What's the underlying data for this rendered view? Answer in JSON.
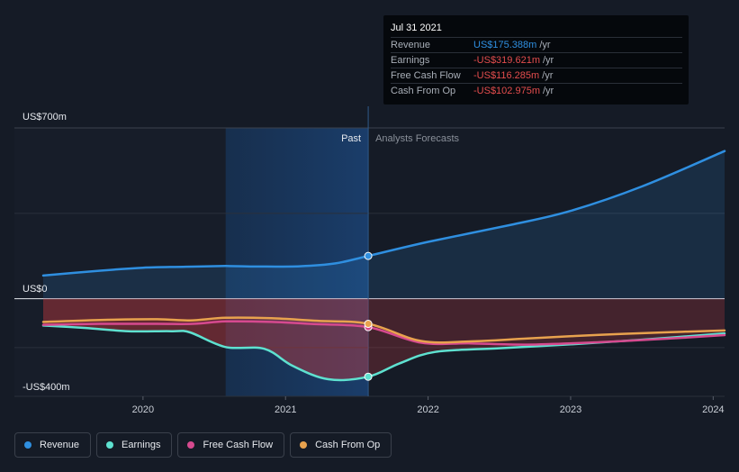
{
  "tooltip": {
    "date": "Jul 31 2021",
    "rows": [
      {
        "label": "Revenue",
        "value": "US$175.388m",
        "unit": "/yr",
        "color": "#2f8fe0"
      },
      {
        "label": "Earnings",
        "value": "-US$319.621m",
        "unit": "/yr",
        "color": "#e44d4d"
      },
      {
        "label": "Free Cash Flow",
        "value": "-US$116.285m",
        "unit": "/yr",
        "color": "#e44d4d"
      },
      {
        "label": "Cash From Op",
        "value": "-US$102.975m",
        "unit": "/yr",
        "color": "#e44d4d"
      }
    ]
  },
  "legend": [
    {
      "label": "Revenue",
      "color": "#2f8fe0"
    },
    {
      "label": "Earnings",
      "color": "#5ee1d0"
    },
    {
      "label": "Free Cash Flow",
      "color": "#d64a8f"
    },
    {
      "label": "Cash From Op",
      "color": "#e8a24e"
    }
  ],
  "chart_data": {
    "type": "line",
    "y_tick_labels": [
      "US$700m",
      "US$0",
      "-US$400m"
    ],
    "x_tick_labels": [
      "2020",
      "2021",
      "2022",
      "2023",
      "2024"
    ],
    "region_labels": {
      "past": "Past",
      "forecast": "Analysts Forecasts"
    },
    "ylim": [
      -400,
      700
    ],
    "xlim": [
      2019.1,
      2024.08
    ],
    "divider_x": 2021.58,
    "highlight_start": 2020.58,
    "series": [
      {
        "name": "Revenue",
        "color": "#2f8fe0",
        "points": [
          [
            2019.3,
            95
          ],
          [
            2019.7,
            115
          ],
          [
            2020.0,
            127
          ],
          [
            2020.3,
            131
          ],
          [
            2020.58,
            134
          ],
          [
            2020.8,
            132
          ],
          [
            2021.1,
            133
          ],
          [
            2021.35,
            145
          ],
          [
            2021.58,
            175.388
          ],
          [
            2022.0,
            233
          ],
          [
            2022.6,
            305
          ],
          [
            2023.0,
            360
          ],
          [
            2023.5,
            460
          ],
          [
            2024.08,
            605
          ]
        ],
        "markers": [
          [
            2021.58,
            175.388
          ]
        ]
      },
      {
        "name": "Earnings",
        "color": "#5ee1d0",
        "points": [
          [
            2019.3,
            -110
          ],
          [
            2019.6,
            -120
          ],
          [
            2019.9,
            -133
          ],
          [
            2020.2,
            -133
          ],
          [
            2020.33,
            -138
          ],
          [
            2020.58,
            -198
          ],
          [
            2020.85,
            -205
          ],
          [
            2021.05,
            -275
          ],
          [
            2021.3,
            -330
          ],
          [
            2021.58,
            -319.621
          ],
          [
            2021.8,
            -265
          ],
          [
            2022.05,
            -218
          ],
          [
            2022.5,
            -203
          ],
          [
            2023.0,
            -187
          ],
          [
            2023.5,
            -168
          ],
          [
            2024.08,
            -142
          ]
        ],
        "markers": [
          [
            2021.58,
            -319.621
          ]
        ]
      },
      {
        "name": "Free Cash Flow",
        "color": "#d64a8f",
        "points": [
          [
            2019.3,
            -107
          ],
          [
            2019.7,
            -103
          ],
          [
            2020.1,
            -103
          ],
          [
            2020.35,
            -103
          ],
          [
            2020.58,
            -93
          ],
          [
            2020.9,
            -95
          ],
          [
            2021.2,
            -104
          ],
          [
            2021.58,
            -116.285
          ],
          [
            2021.95,
            -180
          ],
          [
            2022.3,
            -183
          ],
          [
            2022.7,
            -188
          ],
          [
            2023.2,
            -178
          ],
          [
            2023.7,
            -163
          ],
          [
            2024.08,
            -149
          ]
        ],
        "markers": [
          [
            2021.58,
            -116.285
          ]
        ]
      },
      {
        "name": "Cash From Op",
        "color": "#e8a24e",
        "points": [
          [
            2019.3,
            -95
          ],
          [
            2019.7,
            -87
          ],
          [
            2020.1,
            -84
          ],
          [
            2020.33,
            -89
          ],
          [
            2020.58,
            -78
          ],
          [
            2020.9,
            -80
          ],
          [
            2021.2,
            -90
          ],
          [
            2021.58,
            -102.975
          ],
          [
            2021.95,
            -173
          ],
          [
            2022.3,
            -175
          ],
          [
            2022.7,
            -163
          ],
          [
            2023.2,
            -148
          ],
          [
            2023.7,
            -137
          ],
          [
            2024.08,
            -130
          ]
        ],
        "markers": [
          [
            2021.58,
            -102.975
          ]
        ]
      }
    ],
    "grid": true,
    "legend_position": "bottom-left"
  }
}
